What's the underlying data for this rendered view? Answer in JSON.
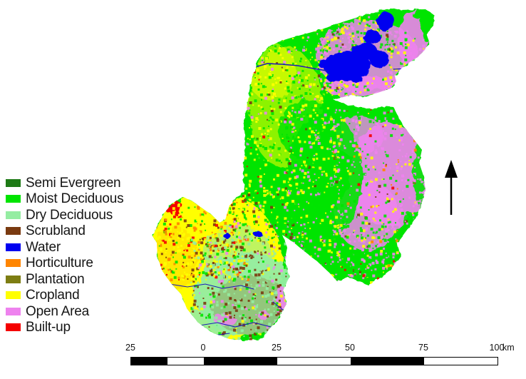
{
  "legend": {
    "items": [
      {
        "label": "Semi Evergreen",
        "color": "#1e7a16"
      },
      {
        "label": "Moist Deciduous",
        "color": "#00e400"
      },
      {
        "label": "Dry Deciduous",
        "color": "#95eda2"
      },
      {
        "label": "Scrubland",
        "color": "#7a3a10"
      },
      {
        "label": "Water",
        "color": "#0000f0"
      },
      {
        "label": "Horticulture",
        "color": "#ff8500"
      },
      {
        "label": "Plantation",
        "color": "#7d7d12"
      },
      {
        "label": "Cropland",
        "color": "#ffff00"
      },
      {
        "label": "Open Area",
        "color": "#ee82ee"
      },
      {
        "label": "Built-up",
        "color": "#f40000"
      }
    ]
  },
  "scale_bar": {
    "ticks": [
      "25",
      "0",
      "25",
      "50",
      "75",
      "100"
    ],
    "unit": "km"
  }
}
